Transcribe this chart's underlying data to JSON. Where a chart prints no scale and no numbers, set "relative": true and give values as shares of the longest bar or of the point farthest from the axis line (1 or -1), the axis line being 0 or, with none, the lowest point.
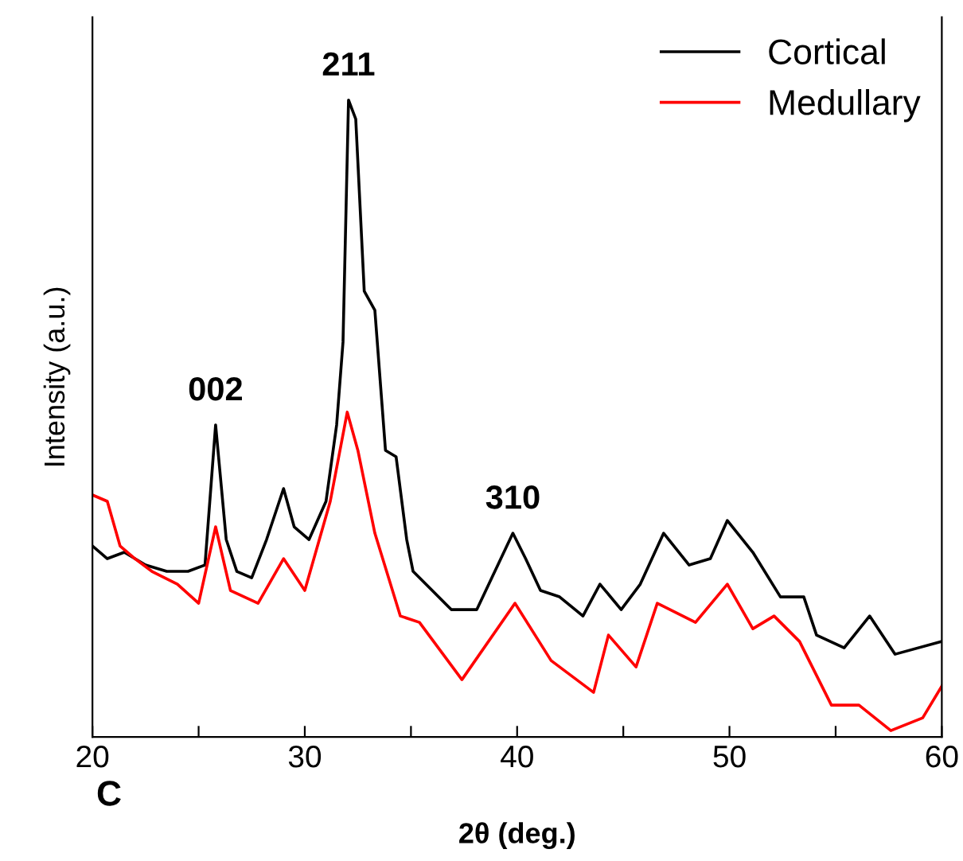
{
  "chart_data": {
    "type": "line",
    "relative": true,
    "xlabel": "2θ (deg.)",
    "ylabel": "Intensity (a.u.)",
    "xlim": [
      20,
      60
    ],
    "xticks": [
      20,
      {
        "value": 25,
        "label": null
      },
      30,
      {
        "value": 35,
        "label": null
      },
      40,
      {
        "value": 45,
        "label": null
      },
      50,
      {
        "value": 55,
        "label": null
      },
      60
    ],
    "legend": "top right",
    "grid": false,
    "marker": "none",
    "line_style": "solid",
    "annotations": [
      {
        "text": "002",
        "x": 25.8,
        "y": 0.49
      },
      {
        "text": "211",
        "x": 32.06,
        "y": 1.0
      },
      {
        "text": "310",
        "x": 39.8,
        "y": 0.32
      },
      "C"
    ],
    "series": [
      {
        "name": "Cortical",
        "color": "#000000",
        "x": [
          20.0,
          20.7,
          21.5,
          22.5,
          23.5,
          24.5,
          25.3,
          25.8,
          26.3,
          26.8,
          27.5,
          28.2,
          29.0,
          29.5,
          30.2,
          31.0,
          31.5,
          31.8,
          32.06,
          32.4,
          32.8,
          33.3,
          33.8,
          34.3,
          34.8,
          35.1,
          36.0,
          36.9,
          38.1,
          39.8,
          40.4,
          41.1,
          42.0,
          43.1,
          43.9,
          44.9,
          45.8,
          46.9,
          48.1,
          49.1,
          49.9,
          51.1,
          52.4,
          53.5,
          54.1,
          55.4,
          56.6,
          57.8,
          60.0
        ],
        "values": [
          0.3,
          0.28,
          0.29,
          0.27,
          0.26,
          0.26,
          0.27,
          0.49,
          0.31,
          0.26,
          0.25,
          0.31,
          0.39,
          0.33,
          0.31,
          0.37,
          0.49,
          0.62,
          1.0,
          0.97,
          0.7,
          0.67,
          0.45,
          0.44,
          0.31,
          0.26,
          0.23,
          0.2,
          0.2,
          0.32,
          0.28,
          0.23,
          0.22,
          0.19,
          0.24,
          0.2,
          0.24,
          0.32,
          0.27,
          0.28,
          0.34,
          0.29,
          0.22,
          0.22,
          0.16,
          0.14,
          0.19,
          0.13,
          0.15
        ]
      },
      {
        "name": "Medullary",
        "color": "#ff0000",
        "x": [
          20.0,
          20.7,
          21.3,
          22.0,
          22.8,
          24.0,
          25.0,
          25.8,
          26.5,
          27.8,
          29.0,
          30.0,
          31.2,
          32.0,
          32.5,
          33.3,
          34.5,
          35.4,
          37.4,
          39.9,
          41.6,
          43.6,
          44.3,
          45.6,
          46.6,
          48.4,
          49.9,
          51.1,
          52.1,
          53.3,
          54.8,
          56.1,
          57.6,
          59.1,
          60.0
        ],
        "values": [
          0.38,
          0.37,
          0.3,
          0.28,
          0.26,
          0.24,
          0.21,
          0.33,
          0.23,
          0.21,
          0.28,
          0.23,
          0.37,
          0.51,
          0.45,
          0.32,
          0.19,
          0.18,
          0.09,
          0.21,
          0.12,
          0.07,
          0.16,
          0.11,
          0.21,
          0.18,
          0.24,
          0.17,
          0.19,
          0.15,
          0.05,
          0.05,
          0.01,
          0.03,
          0.08
        ]
      }
    ]
  }
}
